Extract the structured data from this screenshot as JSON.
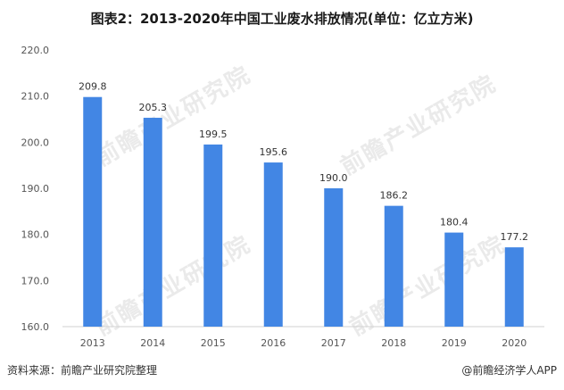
{
  "chart_data": {
    "type": "bar",
    "title": "图表2：2013-2020年中国工业废水排放情况(单位：亿立方米)",
    "categories": [
      "2013",
      "2014",
      "2015",
      "2016",
      "2017",
      "2018",
      "2019",
      "2020"
    ],
    "values": [
      209.8,
      205.3,
      199.5,
      195.6,
      190.0,
      186.2,
      180.4,
      177.2
    ],
    "value_labels": [
      "209.8",
      "205.3",
      "199.5",
      "195.6",
      "190.0",
      "186.2",
      "180.4",
      "177.2"
    ],
    "ylim": [
      160,
      220
    ],
    "yticks": [
      "160.0",
      "170.0",
      "180.0",
      "190.0",
      "200.0",
      "210.0",
      "220.0"
    ],
    "bar_color": "#4286e4",
    "grid": false,
    "legend": "none"
  },
  "footer": {
    "source": "资料来源：前瞻产业研究院整理",
    "brand": "@前瞻经济学人APP"
  },
  "watermark_text": "前瞻产业研究院"
}
